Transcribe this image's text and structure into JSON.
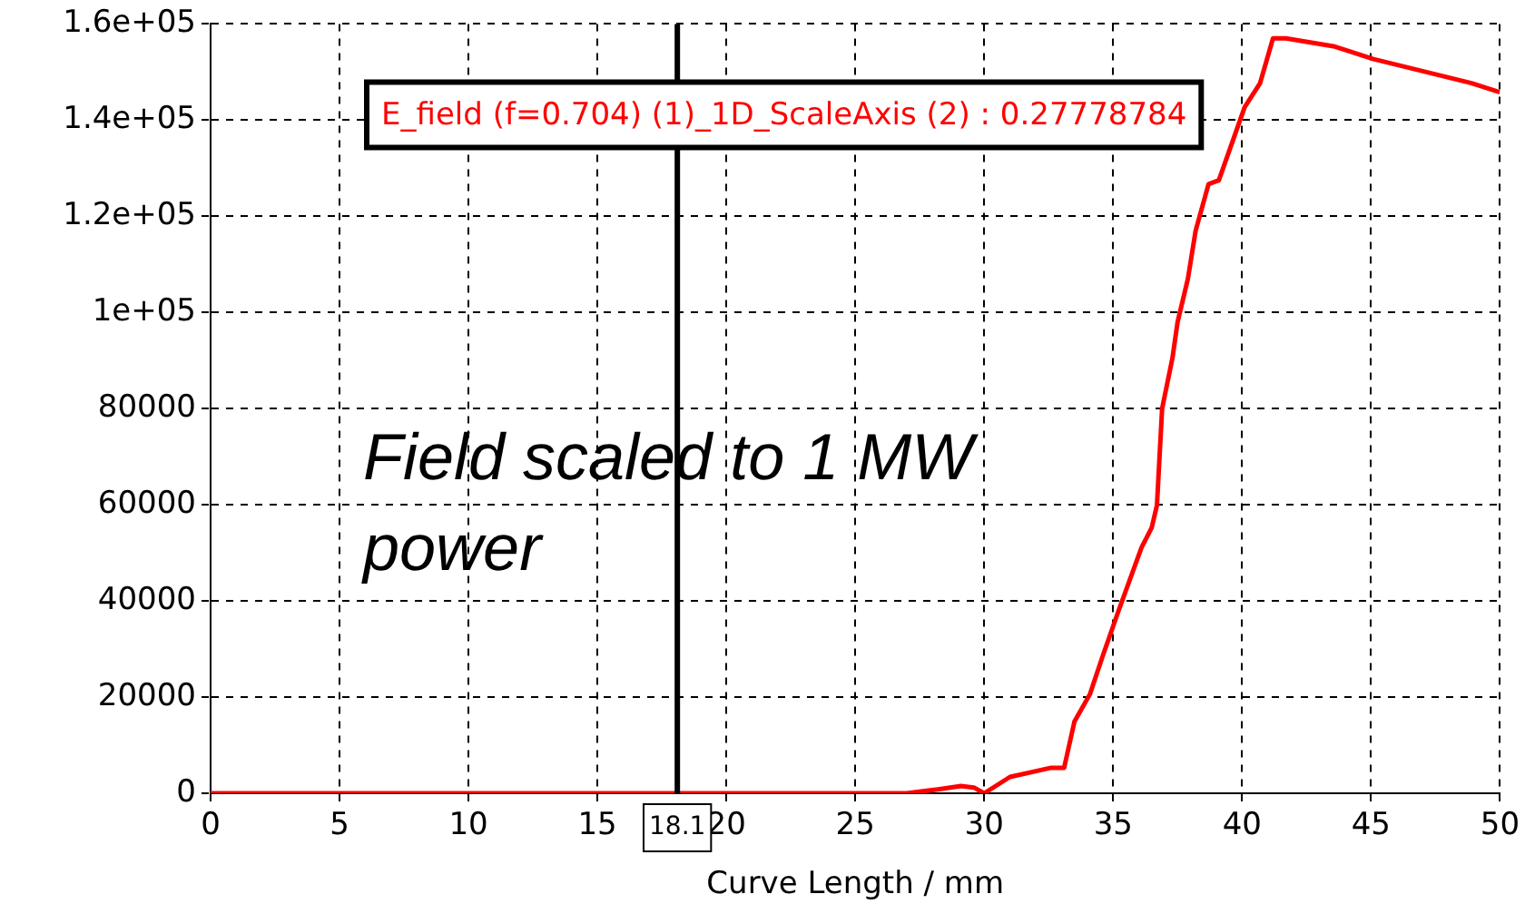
{
  "chart_data": {
    "type": "line",
    "xlabel": "Curve Length / mm",
    "annotations": [
      "E_field (f=0.704) (1)_1D_ScaleAxis (2) : 0.27778784",
      "Field scaled to 1 MW power"
    ],
    "x": [
      0,
      27,
      28.2,
      29.1,
      29.6,
      30,
      31,
      32.6,
      33.1,
      33.5,
      34.1,
      34.6,
      35.2,
      36.1,
      36.5,
      36.7,
      36.9,
      37.3,
      37.5,
      37.9,
      38.2,
      38.7,
      39.1,
      40.1,
      40.7,
      41.2,
      41.7,
      43.6,
      45.1,
      48.9,
      50
    ],
    "series": [
      {
        "color": "#ff0000",
        "values": [
          0,
          0,
          800,
          1500,
          1200,
          0,
          3400,
          5300,
          5300,
          14900,
          20600,
          28600,
          37800,
          51100,
          55300,
          59900,
          80000,
          90500,
          98000,
          107000,
          117000,
          126700,
          127500,
          142700,
          147700,
          157000,
          157000,
          155300,
          152700,
          147700,
          145800
        ]
      }
    ],
    "xlim": [
      0,
      50
    ],
    "xticks": [
      0,
      5,
      10,
      15,
      20,
      25,
      30,
      35,
      40,
      45,
      50
    ],
    "ylim": [
      0,
      160000
    ],
    "yticks": [
      0,
      20000,
      40000,
      60000,
      80000,
      {
        "value": 100000,
        "label": "1e+05"
      },
      {
        "value": 120000,
        "label": "1.2e+05"
      },
      {
        "value": 140000,
        "label": "1.4e+05"
      },
      {
        "value": 160000,
        "label": "1.6e+05"
      }
    ],
    "ref_lines": [
      {
        "axis": "x",
        "value": 18.1,
        "label": "18.1",
        "color": "#000000"
      }
    ],
    "grid": true,
    "legend": false,
    "marker": "none",
    "line_style": "solid"
  }
}
